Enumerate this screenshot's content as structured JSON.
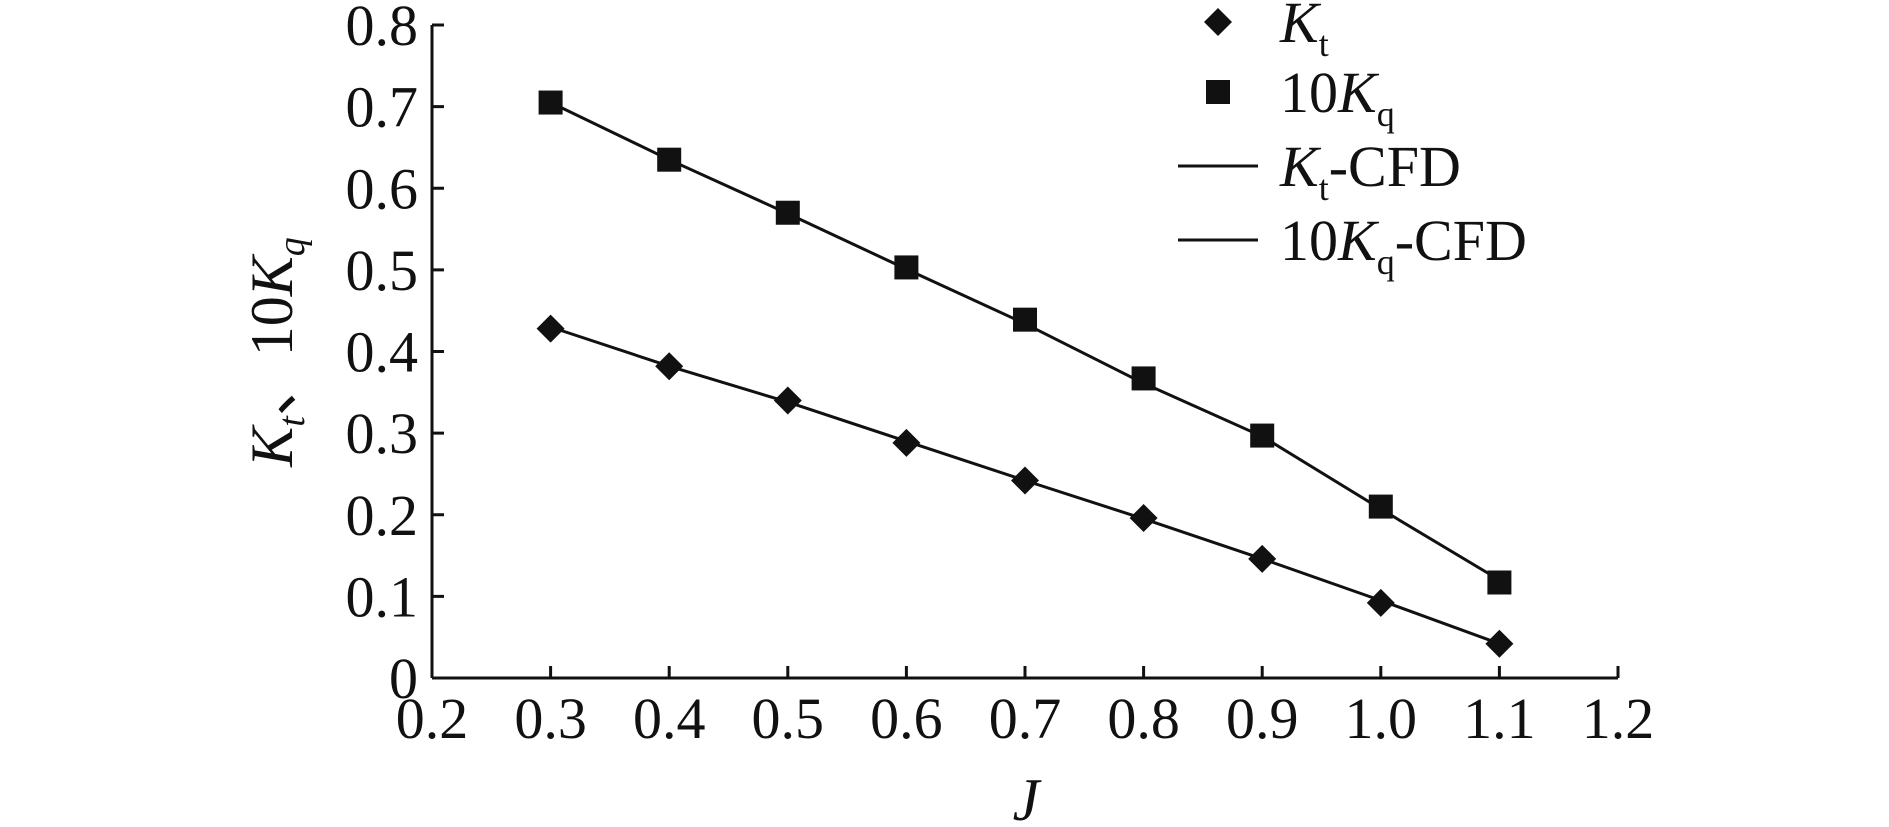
{
  "chart_data": {
    "type": "line",
    "title": "",
    "xlabel": "J",
    "ylabel": {
      "parts": [
        {
          "text": "K",
          "italic": true
        },
        {
          "text": "t",
          "italic": true,
          "sub": true
        },
        {
          "text": "、10",
          "italic": false
        },
        {
          "text": "K",
          "italic": true
        },
        {
          "text": "q",
          "italic": true,
          "sub": true
        }
      ]
    },
    "xlim": [
      0.2,
      1.2
    ],
    "ylim": [
      0,
      0.8
    ],
    "x_ticks": [
      "0.2",
      "0.3",
      "0.4",
      "0.5",
      "0.6",
      "0.7",
      "0.8",
      "0.9",
      "1.0",
      "1.1",
      "1.2"
    ],
    "y_ticks": [
      "0",
      "0.1",
      "0.2",
      "0.3",
      "0.4",
      "0.5",
      "0.6",
      "0.7",
      "0.8"
    ],
    "grid": false,
    "legend_position": "top-right",
    "x": [
      0.3,
      0.4,
      0.5,
      0.6,
      0.7,
      0.8,
      0.9,
      1.0,
      1.1
    ],
    "series": [
      {
        "key": "kt",
        "legend": {
          "main": "K",
          "sub": "t",
          "suffix": "",
          "prefix": ""
        },
        "kind": "markers",
        "marker": "diamond",
        "values": [
          0.428,
          0.382,
          0.34,
          0.288,
          0.242,
          0.196,
          0.146,
          0.092,
          0.042
        ]
      },
      {
        "key": "kq",
        "legend": {
          "main": "K",
          "sub": "q",
          "suffix": "",
          "prefix": "10"
        },
        "kind": "markers",
        "marker": "square",
        "values": [
          0.705,
          0.635,
          0.57,
          0.503,
          0.439,
          0.367,
          0.297,
          0.21,
          0.117
        ]
      },
      {
        "key": "kt_cfd",
        "legend": {
          "main": "K",
          "sub": "t",
          "suffix": "-CFD",
          "prefix": ""
        },
        "kind": "line",
        "values": [
          0.43,
          0.382,
          0.338,
          0.29,
          0.242,
          0.195,
          0.146,
          0.095,
          0.042
        ]
      },
      {
        "key": "kq_cfd",
        "legend": {
          "main": "K",
          "sub": "q",
          "suffix": "-CFD",
          "prefix": "10"
        },
        "kind": "line",
        "values": [
          0.705,
          0.635,
          0.569,
          0.501,
          0.434,
          0.361,
          0.296,
          0.207,
          0.12
        ]
      }
    ],
    "colors": {
      "ink": "#111111",
      "background": "#ffffff"
    }
  }
}
